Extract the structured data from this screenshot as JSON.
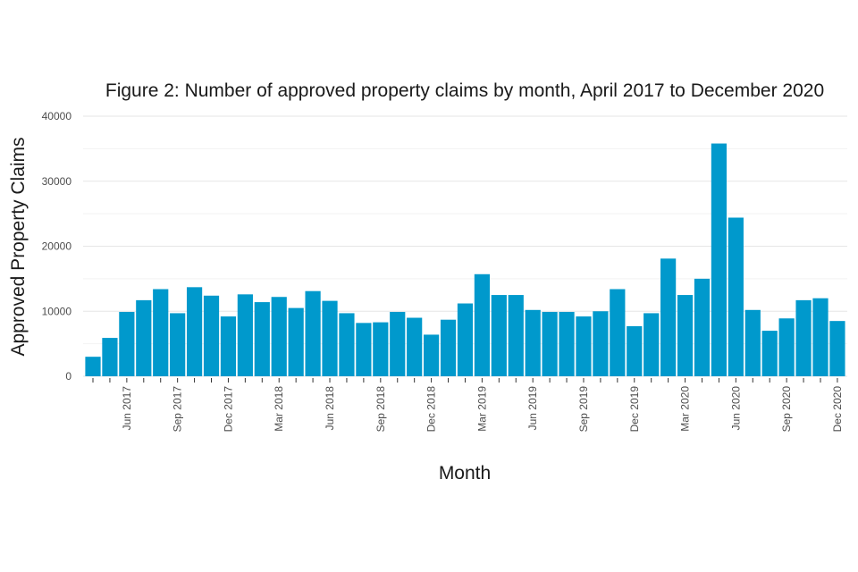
{
  "chart_data": {
    "type": "bar",
    "title": "Figure 2: Number of approved property claims by month, April 2017 to December 2020",
    "xlabel": "Month",
    "ylabel": "Approved Property Claims",
    "ylim": [
      0,
      40000
    ],
    "yticks": [
      {
        "value": 0,
        "label": "0"
      },
      {
        "value": 10000,
        "label": "10000"
      },
      {
        "value": 20000,
        "label": "20000"
      },
      {
        "value": 30000,
        "label": "30000"
      },
      {
        "value": 40000,
        "label": "40000"
      }
    ],
    "bar_color": "#0099cc",
    "categories": [
      "Apr 2017",
      "May 2017",
      "Jun 2017",
      "Jul 2017",
      "Aug 2017",
      "Sep 2017",
      "Oct 2017",
      "Nov 2017",
      "Dec 2017",
      "Jan 2018",
      "Feb 2018",
      "Mar 2018",
      "Apr 2018",
      "May 2018",
      "Jun 2018",
      "Jul 2018",
      "Aug 2018",
      "Sep 2018",
      "Oct 2018",
      "Nov 2018",
      "Dec 2018",
      "Jan 2019",
      "Feb 2019",
      "Mar 2019",
      "Apr 2019",
      "May 2019",
      "Jun 2019",
      "Jul 2019",
      "Aug 2019",
      "Sep 2019",
      "Oct 2019",
      "Nov 2019",
      "Dec 2019",
      "Jan 2020",
      "Feb 2020",
      "Mar 2020",
      "Apr 2020",
      "May 2020",
      "Jun 2020",
      "Jul 2020",
      "Aug 2020",
      "Sep 2020",
      "Oct 2020",
      "Nov 2020",
      "Dec 2020"
    ],
    "values": [
      3000,
      5900,
      9900,
      11700,
      13400,
      9700,
      13700,
      12400,
      9200,
      12600,
      11400,
      12200,
      10500,
      13100,
      11600,
      9700,
      8200,
      8300,
      9900,
      9000,
      6400,
      8700,
      11200,
      15700,
      12500,
      12500,
      10200,
      9900,
      9900,
      9200,
      10000,
      13400,
      7700,
      9700,
      18100,
      12500,
      15000,
      35800,
      24400,
      10200,
      7000,
      8900,
      11700,
      12000,
      8500
    ],
    "xtick_labels": [
      {
        "index": 2,
        "label": "Jun 2017"
      },
      {
        "index": 5,
        "label": "Sep 2017"
      },
      {
        "index": 8,
        "label": "Dec 2017"
      },
      {
        "index": 11,
        "label": "Mar 2018"
      },
      {
        "index": 14,
        "label": "Jun 2018"
      },
      {
        "index": 17,
        "label": "Sep 2018"
      },
      {
        "index": 20,
        "label": "Dec 2018"
      },
      {
        "index": 23,
        "label": "Mar 2019"
      },
      {
        "index": 26,
        "label": "Jun 2019"
      },
      {
        "index": 29,
        "label": "Sep 2019"
      },
      {
        "index": 32,
        "label": "Dec 2019"
      },
      {
        "index": 35,
        "label": "Mar 2020"
      },
      {
        "index": 38,
        "label": "Jun 2020"
      },
      {
        "index": 41,
        "label": "Sep 2020"
      },
      {
        "index": 44,
        "label": "Dec 2020"
      }
    ],
    "grid": true,
    "legend": "none"
  }
}
